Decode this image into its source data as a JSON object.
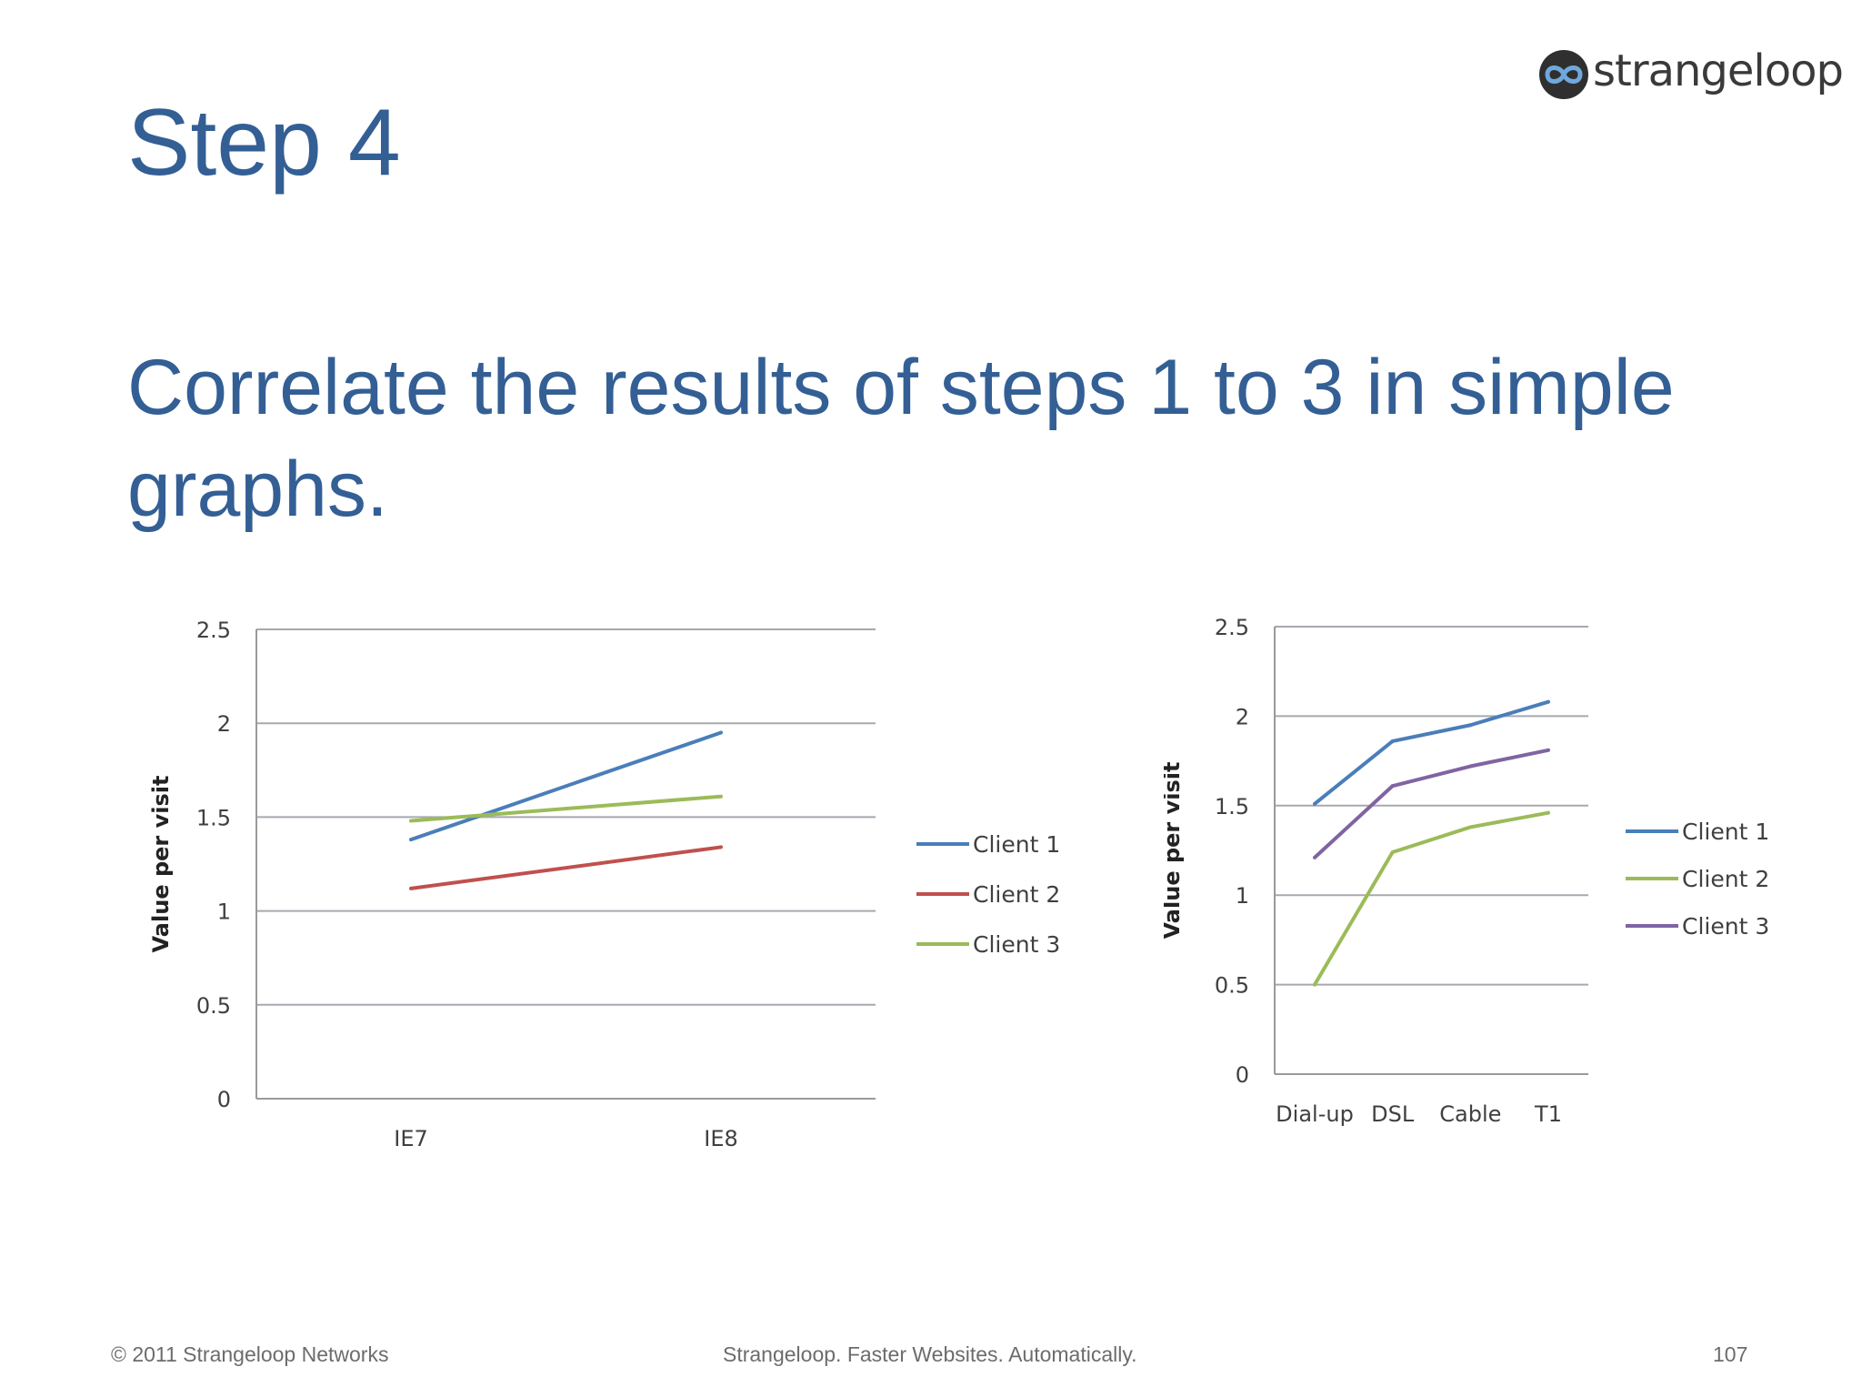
{
  "logo": {
    "text": "strangeloop"
  },
  "title": "Step 4",
  "subtitle": "Correlate the results of steps 1 to 3 in simple graphs.",
  "footer": {
    "left": "© 2011 Strangeloop Networks",
    "center": "Strangeloop. Faster Websites. Automatically.",
    "page": "107"
  },
  "colors": {
    "title": "#335f95",
    "client1_blue": "#4a7eb9",
    "client2_red": "#c0504d",
    "client3_green": "#9bbb59",
    "client3_purple": "#8064a2",
    "client2_green": "#9bbb59"
  },
  "chart_data": [
    {
      "type": "line",
      "title": "",
      "xlabel": "",
      "ylabel": "Value per visit",
      "categories": [
        "IE7",
        "IE8"
      ],
      "ylim": [
        0,
        2.5
      ],
      "yticks": [
        "0",
        "0.5",
        "1",
        "1.5",
        "2",
        "2.5"
      ],
      "grid": true,
      "legend_position": "right",
      "series": [
        {
          "name": "Client 1",
          "color": "#4a7eb9",
          "values": [
            1.38,
            1.95
          ]
        },
        {
          "name": "Client 2",
          "color": "#c0504d",
          "values": [
            1.12,
            1.34
          ]
        },
        {
          "name": "Client 3",
          "color": "#9bbb59",
          "values": [
            1.48,
            1.61
          ]
        }
      ]
    },
    {
      "type": "line",
      "title": "",
      "xlabel": "",
      "ylabel": "Value per visit",
      "categories": [
        "Dial-up",
        "DSL",
        "Cable",
        "T1"
      ],
      "ylim": [
        0,
        2.5
      ],
      "yticks": [
        "0",
        "0.5",
        "1",
        "1.5",
        "2",
        "2.5"
      ],
      "grid": true,
      "legend_position": "right",
      "series": [
        {
          "name": "Client 1",
          "color": "#4a7eb9",
          "values": [
            1.51,
            1.86,
            1.95,
            2.08
          ]
        },
        {
          "name": "Client 2",
          "color": "#9bbb59",
          "values": [
            0.5,
            1.24,
            1.38,
            1.46
          ]
        },
        {
          "name": "Client 3",
          "color": "#8064a2",
          "values": [
            1.21,
            1.61,
            1.72,
            1.81
          ]
        }
      ]
    }
  ]
}
